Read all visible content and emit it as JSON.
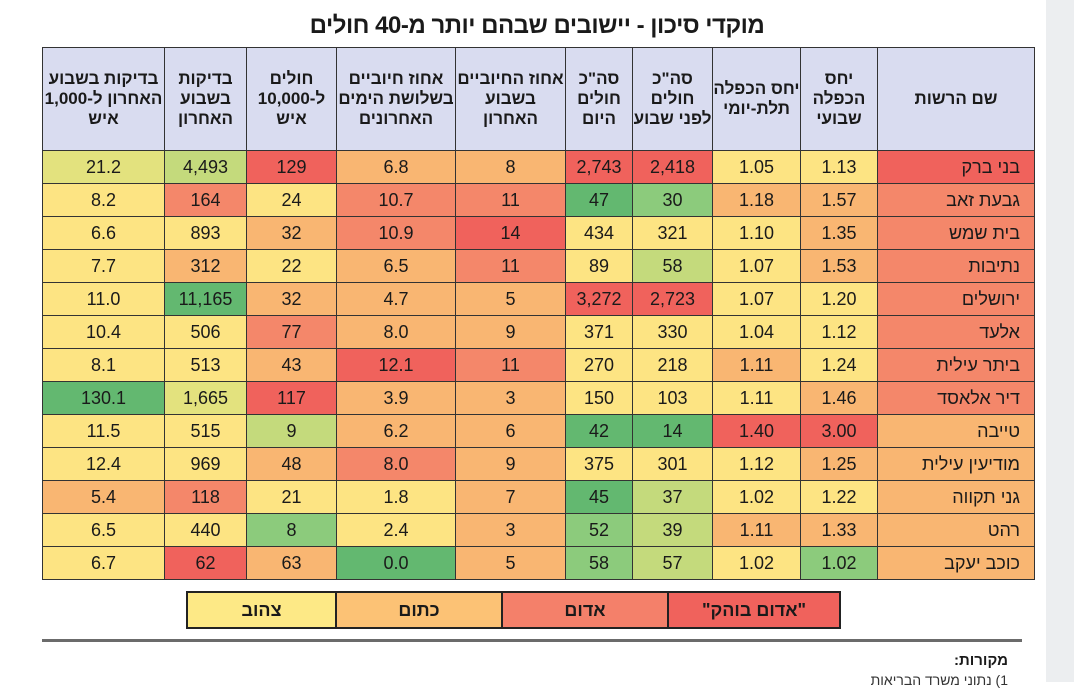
{
  "title": "מוקדי סיכון - יישובים שבהם יותר מ-40 חולים",
  "table": {
    "headers": [
      "שם הרשות",
      "יחס הכפלה שבועי",
      "יחס הכפלה תלת-יומי",
      "סה\"כ חולים לפני שבוע",
      "סה\"כ חולים היום",
      "אחוז החיוביים בשבוע האחרון",
      "אחוז חיוביים בשלושת הימים האחרונים",
      "חולים ל-10,000 איש",
      "בדיקות בשבוע האחרון",
      "בדיקות בשבוע האחרון ל-1,000 איש"
    ],
    "rows": [
      {
        "cells": [
          "בני ברק",
          "1.13",
          "1.05",
          "2,418",
          "2,743",
          "8",
          "6.8",
          "129",
          "4,493",
          "21.2"
        ],
        "colors": [
          "R",
          "y",
          "y",
          "R",
          "R",
          "o",
          "o",
          "R",
          "lg",
          "ly"
        ]
      },
      {
        "cells": [
          "גבעת זאב",
          "1.57",
          "1.18",
          "30",
          "47",
          "11",
          "10.7",
          "24",
          "164",
          "8.2"
        ],
        "colors": [
          "r",
          "o",
          "o",
          "g",
          "G",
          "r",
          "r",
          "y",
          "r",
          "y"
        ]
      },
      {
        "cells": [
          "בית שמש",
          "1.35",
          "1.10",
          "321",
          "434",
          "14",
          "10.9",
          "32",
          "893",
          "6.6"
        ],
        "colors": [
          "r",
          "o",
          "y",
          "y",
          "y",
          "R",
          "r",
          "o",
          "y",
          "y"
        ]
      },
      {
        "cells": [
          "נתיבות",
          "1.53",
          "1.07",
          "58",
          "89",
          "11",
          "6.5",
          "22",
          "312",
          "7.7"
        ],
        "colors": [
          "r",
          "o",
          "y",
          "lg",
          "y",
          "r",
          "o",
          "y",
          "o",
          "y"
        ]
      },
      {
        "cells": [
          "ירושלים",
          "1.20",
          "1.07",
          "2,723",
          "3,272",
          "5",
          "4.7",
          "32",
          "11,165",
          "11.0"
        ],
        "colors": [
          "r",
          "y",
          "y",
          "R",
          "R",
          "o",
          "o",
          "o",
          "G",
          "y"
        ]
      },
      {
        "cells": [
          "אלעד",
          "1.12",
          "1.04",
          "330",
          "371",
          "9",
          "8.0",
          "77",
          "506",
          "10.4"
        ],
        "colors": [
          "r",
          "y",
          "y",
          "y",
          "y",
          "o",
          "o",
          "r",
          "y",
          "y"
        ]
      },
      {
        "cells": [
          "ביתר עילית",
          "1.24",
          "1.11",
          "218",
          "270",
          "11",
          "12.1",
          "43",
          "513",
          "8.1"
        ],
        "colors": [
          "r",
          "y",
          "o",
          "y",
          "y",
          "r",
          "R",
          "o",
          "y",
          "y"
        ]
      },
      {
        "cells": [
          "דיר אלאסד",
          "1.46",
          "1.11",
          "103",
          "150",
          "3",
          "3.9",
          "117",
          "1,665",
          "130.1"
        ],
        "colors": [
          "r",
          "o",
          "y",
          "y",
          "y",
          "o",
          "o",
          "R",
          "ly",
          "G"
        ]
      },
      {
        "cells": [
          "טייבה",
          "3.00",
          "1.40",
          "14",
          "42",
          "6",
          "6.2",
          "9",
          "515",
          "11.5"
        ],
        "colors": [
          "o",
          "R",
          "R",
          "G",
          "G",
          "o",
          "o",
          "lg",
          "y",
          "y"
        ]
      },
      {
        "cells": [
          "מודיעין עילית",
          "1.25",
          "1.12",
          "301",
          "375",
          "9",
          "8.0",
          "48",
          "969",
          "12.4"
        ],
        "colors": [
          "o",
          "o",
          "y",
          "y",
          "y",
          "o",
          "r",
          "o",
          "y",
          "y"
        ]
      },
      {
        "cells": [
          "גני תקווה",
          "1.22",
          "1.02",
          "37",
          "45",
          "7",
          "1.8",
          "21",
          "118",
          "5.4"
        ],
        "colors": [
          "o",
          "y",
          "y",
          "lg",
          "G",
          "o",
          "y",
          "y",
          "r",
          "o"
        ]
      },
      {
        "cells": [
          "רהט",
          "1.33",
          "1.11",
          "39",
          "52",
          "3",
          "2.4",
          "8",
          "440",
          "6.5"
        ],
        "colors": [
          "o",
          "o",
          "o",
          "lg",
          "g",
          "o",
          "y",
          "g",
          "y",
          "y"
        ]
      },
      {
        "cells": [
          "כוכב יעקב",
          "1.02",
          "1.02",
          "57",
          "58",
          "5",
          "0.0",
          "63",
          "62",
          "6.7"
        ],
        "colors": [
          "o",
          "g",
          "y",
          "lg",
          "g",
          "o",
          "G",
          "o",
          "R",
          "y"
        ]
      }
    ]
  },
  "palette": {
    "R": "#f0625c",
    "r": "#f4876a",
    "o": "#f9b672",
    "y": "#fde483",
    "ly": "#e3e27e",
    "lg": "#c4da7c",
    "g": "#8ccb7c",
    "G": "#63b870"
  },
  "legend": [
    {
      "label": "\"אדום בוהק\"",
      "color": "#f0625c"
    },
    {
      "label": "אדום",
      "color": "#f4806a"
    },
    {
      "label": "כתום",
      "color": "#fcc275"
    },
    {
      "label": "צהוב",
      "color": "#fde986"
    }
  ],
  "sources_label": "מקורות:",
  "sources": [
    "1) נתוני משרד הבריאות"
  ]
}
